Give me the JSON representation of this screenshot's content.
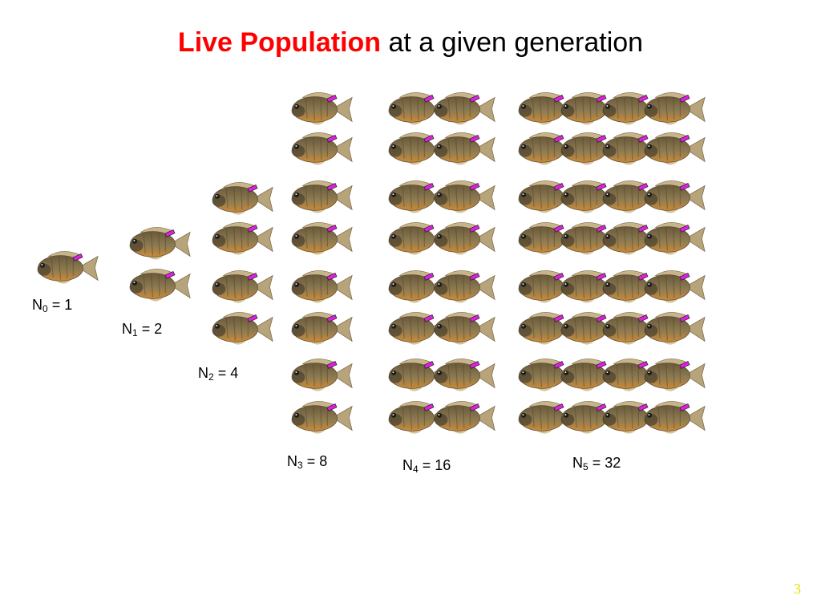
{
  "title": {
    "highlight": "Live Population",
    "rest": "at a given generation"
  },
  "generations": [
    {
      "symbol": "N",
      "subscript": "0",
      "equation": "= 1"
    },
    {
      "symbol": "N",
      "subscript": "1",
      "equation": "= 2"
    },
    {
      "symbol": "N",
      "subscript": "2",
      "equation": "= 4"
    },
    {
      "symbol": "N",
      "subscript": "3",
      "equation": "= 8"
    },
    {
      "symbol": "N",
      "subscript": "4",
      "equation": "= 16"
    },
    {
      "symbol": "N",
      "subscript": "5",
      "equation": "= 32"
    }
  ],
  "page_number": "3"
}
